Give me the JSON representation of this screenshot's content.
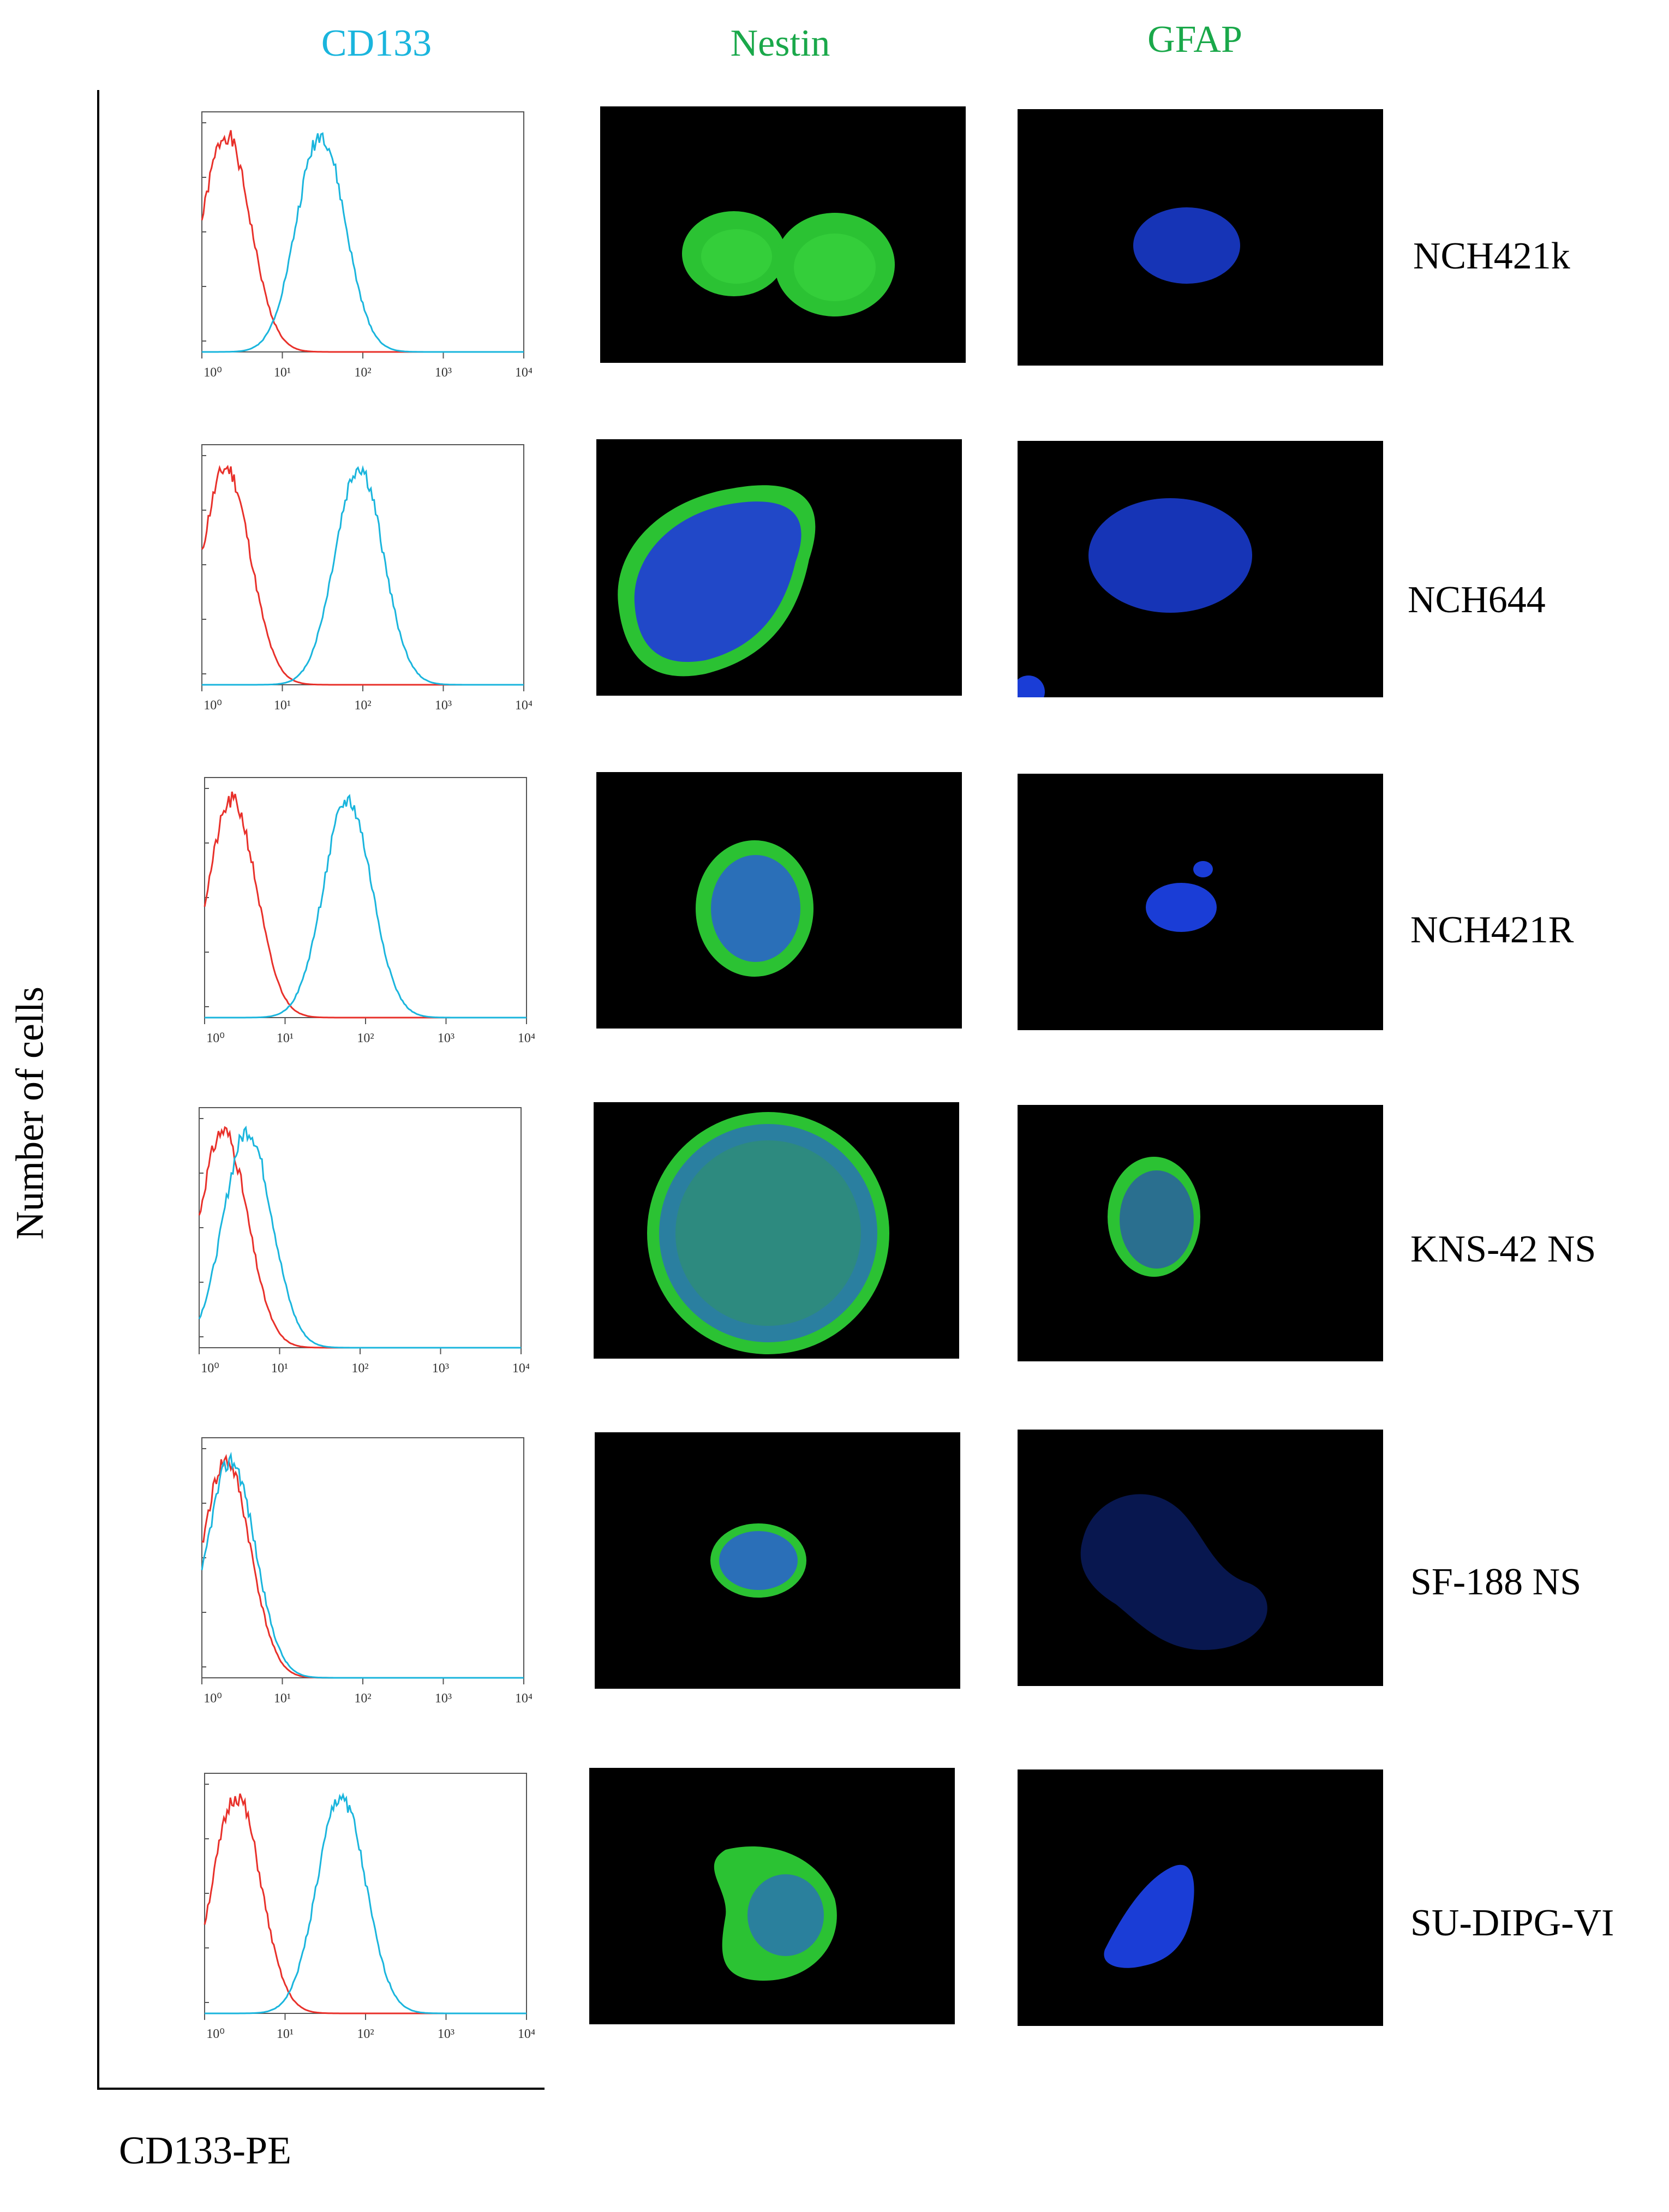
{
  "columns": {
    "cd133": "CD133",
    "nestin": "Nestin",
    "gfap": "GFAP"
  },
  "axes": {
    "ylabel": "Number of cells",
    "xlabel": "CD133-PE"
  },
  "colors": {
    "cd133": "#1ab5dd",
    "nestin": "#1aa84a",
    "gfap": "#1aa84a",
    "isotype": "#e8302a",
    "stain_green": "#2bc233",
    "stain_blue": "#1a3dd6"
  },
  "rows": [
    {
      "label": "NCH421k"
    },
    {
      "label": "NCH644"
    },
    {
      "label": "NCH421R"
    },
    {
      "label": "KNS-42 NS"
    },
    {
      "label": "SF-188 NS"
    },
    {
      "label": "SU-DIPG-VI"
    }
  ],
  "chart_data": [
    {
      "type": "line",
      "panel": "NCH421k",
      "x_scale": "log",
      "xlim": [
        1,
        10000
      ],
      "x_ticks": [
        "10⁰",
        "10¹",
        "10²",
        "10³",
        "10⁴"
      ],
      "series": [
        {
          "color": "#e8302a",
          "peak_x": 2
        },
        {
          "color": "#1ab5dd",
          "peak_x": 30
        }
      ]
    },
    {
      "type": "line",
      "panel": "NCH644",
      "x_scale": "log",
      "xlim": [
        1,
        10000
      ],
      "x_ticks": [
        "10⁰",
        "10¹",
        "10²",
        "10³",
        "10⁴"
      ],
      "series": [
        {
          "color": "#e8302a",
          "peak_x": 2
        },
        {
          "color": "#1ab5dd",
          "peak_x": 90
        }
      ]
    },
    {
      "type": "line",
      "panel": "NCH421R",
      "x_scale": "log",
      "xlim": [
        1,
        10000
      ],
      "x_ticks": [
        "10⁰",
        "10¹",
        "10²",
        "10³",
        "10⁴"
      ],
      "series": [
        {
          "color": "#e8302a",
          "peak_x": 2.2
        },
        {
          "color": "#1ab5dd",
          "peak_x": 60
        }
      ]
    },
    {
      "type": "line",
      "panel": "KNS-42 NS",
      "x_scale": "log",
      "xlim": [
        1,
        10000
      ],
      "x_ticks": [
        "10⁰",
        "10¹",
        "10²",
        "10³",
        "10⁴"
      ],
      "series": [
        {
          "color": "#e8302a",
          "peak_x": 2
        },
        {
          "color": "#1ab5dd",
          "peak_x": 4
        }
      ]
    },
    {
      "type": "line",
      "panel": "SF-188 NS",
      "x_scale": "log",
      "xlim": [
        1,
        10000
      ],
      "x_ticks": [
        "10⁰",
        "10¹",
        "10²",
        "10³",
        "10⁴"
      ],
      "series": [
        {
          "color": "#e8302a",
          "peak_x": 2
        },
        {
          "color": "#1ab5dd",
          "peak_x": 2.3
        }
      ]
    },
    {
      "type": "line",
      "panel": "SU-DIPG-VI",
      "x_scale": "log",
      "xlim": [
        1,
        10000
      ],
      "x_ticks": [
        "10⁰",
        "10¹",
        "10²",
        "10³",
        "10⁴"
      ],
      "series": [
        {
          "color": "#e8302a",
          "peak_x": 2.5
        },
        {
          "color": "#1ab5dd",
          "peak_x": 50
        }
      ]
    }
  ]
}
